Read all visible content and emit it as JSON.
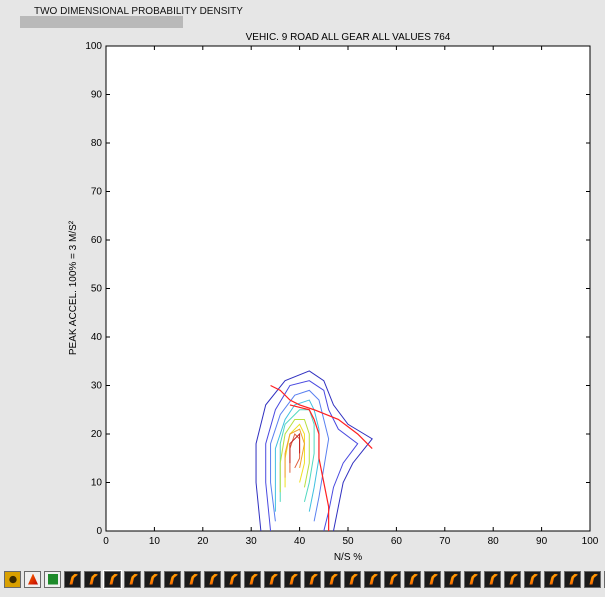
{
  "window": {
    "title": "TWO DIMENSIONAL PROBABILITY DENSITY"
  },
  "chart_data": {
    "type": "contour",
    "title": "VEHIC. 9  ROAD ALL GEAR ALL VALUES 764",
    "xlabel": "N/S %",
    "ylabel": "PEAK ACCEL. 100% = 3 M/S²",
    "xlim": [
      0,
      100
    ],
    "ylim": [
      0,
      100
    ],
    "xticks": [
      0,
      10,
      20,
      30,
      40,
      50,
      60,
      70,
      80,
      90,
      100
    ],
    "yticks": [
      0,
      10,
      20,
      30,
      40,
      50,
      60,
      70,
      80,
      90,
      100
    ],
    "grid": false,
    "contour_levels": [
      {
        "color": "#3030c0",
        "points": [
          [
            32,
            0
          ],
          [
            31,
            10
          ],
          [
            31,
            18
          ],
          [
            33,
            26
          ],
          [
            37,
            31
          ],
          [
            42,
            33
          ],
          [
            45,
            31
          ],
          [
            47,
            26
          ],
          [
            50,
            22
          ],
          [
            55,
            19
          ],
          [
            51,
            14
          ],
          [
            49,
            10
          ],
          [
            48,
            5
          ],
          [
            47,
            0
          ]
        ]
      },
      {
        "color": "#4a4ae0",
        "points": [
          [
            34,
            0
          ],
          [
            33,
            10
          ],
          [
            33,
            18
          ],
          [
            35,
            25
          ],
          [
            38,
            30
          ],
          [
            42,
            31
          ],
          [
            45,
            29
          ],
          [
            46,
            25
          ],
          [
            48,
            21
          ],
          [
            52,
            18
          ],
          [
            49,
            14
          ],
          [
            47,
            9
          ],
          [
            46,
            4
          ],
          [
            45,
            0
          ]
        ]
      },
      {
        "color": "#5a80f0",
        "points": [
          [
            35,
            2
          ],
          [
            34,
            10
          ],
          [
            34,
            18
          ],
          [
            36,
            24
          ],
          [
            39,
            28
          ],
          [
            42,
            29
          ],
          [
            44,
            27
          ],
          [
            45,
            23
          ],
          [
            46,
            19
          ],
          [
            45,
            13
          ],
          [
            44,
            7
          ],
          [
            43,
            2
          ]
        ]
      },
      {
        "color": "#40c0e0",
        "points": [
          [
            35,
            4
          ],
          [
            35,
            10
          ],
          [
            35,
            17
          ],
          [
            37,
            23
          ],
          [
            39,
            26
          ],
          [
            42,
            27
          ],
          [
            43,
            25
          ],
          [
            44,
            21
          ],
          [
            44,
            15
          ],
          [
            43,
            9
          ],
          [
            42,
            4
          ]
        ]
      },
      {
        "color": "#50d8c0",
        "points": [
          [
            36,
            6
          ],
          [
            36,
            12
          ],
          [
            36,
            18
          ],
          [
            37,
            22
          ],
          [
            40,
            25
          ],
          [
            42,
            25
          ],
          [
            43,
            22
          ],
          [
            43,
            16
          ],
          [
            42,
            10
          ],
          [
            41,
            6
          ]
        ]
      },
      {
        "color": "#b8e040",
        "points": [
          [
            36,
            8
          ],
          [
            36,
            14
          ],
          [
            37,
            20
          ],
          [
            39,
            23
          ],
          [
            41,
            23
          ],
          [
            42,
            20
          ],
          [
            42,
            14
          ],
          [
            41,
            9
          ]
        ]
      },
      {
        "color": "#f0e020",
        "points": [
          [
            37,
            9
          ],
          [
            37,
            15
          ],
          [
            38,
            20
          ],
          [
            40,
            22
          ],
          [
            41,
            20
          ],
          [
            41,
            14
          ],
          [
            40,
            10
          ]
        ]
      },
      {
        "color": "#f0a030",
        "points": [
          [
            37,
            11
          ],
          [
            37,
            16
          ],
          [
            38,
            20
          ],
          [
            40,
            21
          ],
          [
            41,
            18
          ],
          [
            40,
            13
          ]
        ]
      },
      {
        "color": "#e06040",
        "points": [
          [
            38,
            12
          ],
          [
            38,
            17
          ],
          [
            39,
            20
          ],
          [
            40,
            19
          ],
          [
            40,
            15
          ],
          [
            39,
            13
          ]
        ]
      },
      {
        "color": "#c02020",
        "points": [
          [
            38,
            14
          ],
          [
            38,
            18
          ],
          [
            40,
            20
          ],
          [
            40,
            16
          ]
        ]
      }
    ],
    "trend_lines": [
      {
        "color": "#ff2020",
        "points": [
          [
            34,
            30
          ],
          [
            36,
            29
          ],
          [
            38,
            27
          ],
          [
            40,
            26
          ],
          [
            43,
            25
          ],
          [
            48,
            23
          ],
          [
            52,
            20
          ],
          [
            55,
            17
          ]
        ]
      },
      {
        "color": "#ff2020",
        "points": [
          [
            46,
            0
          ],
          [
            46,
            5
          ],
          [
            45,
            10
          ],
          [
            44,
            15
          ],
          [
            44,
            20
          ],
          [
            43,
            23
          ],
          [
            42,
            25
          ],
          [
            38,
            26
          ]
        ]
      }
    ]
  },
  "toolbar": {
    "button_count": 31,
    "icon": "matlab-figure-icon"
  }
}
